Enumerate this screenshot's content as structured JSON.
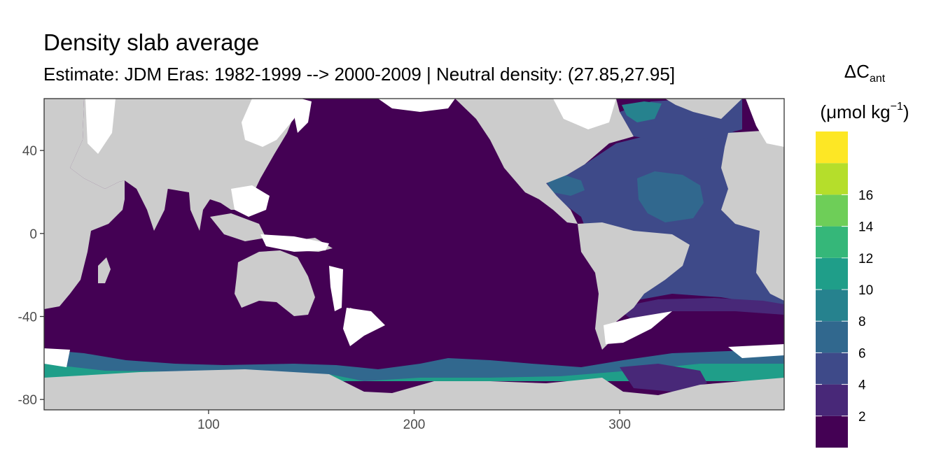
{
  "title": "Density slab average",
  "subtitle": "Estimate: JDM Eras: 1982-1999 --> 2000-2009 | Neutral density: (27.85,27.95]",
  "chart_data": {
    "type": "heatmap",
    "x_ticks": [
      "100",
      "200",
      "300"
    ],
    "x_tick_values": [
      100,
      200,
      300
    ],
    "y_ticks": [
      "40",
      "0",
      "-40",
      "-80"
    ],
    "y_tick_values": [
      40,
      0,
      -40,
      -80
    ],
    "xlim": [
      20,
      380
    ],
    "ylim": [
      -85,
      65
    ],
    "colorscale": {
      "title_symbol": "ΔC",
      "title_subscript": "ant",
      "unit_prefix": "(μmol kg",
      "unit_superscript": "−1",
      "unit_suffix": ")",
      "labels": [
        "2",
        "4",
        "6",
        "8",
        "10",
        "12",
        "14",
        "16"
      ],
      "bins": [
        {
          "from": 0,
          "to": 2,
          "color": "#440154"
        },
        {
          "from": 2,
          "to": 4,
          "color": "#482878"
        },
        {
          "from": 4,
          "to": 6,
          "color": "#3e4a89"
        },
        {
          "from": 6,
          "to": 8,
          "color": "#31688e"
        },
        {
          "from": 8,
          "to": 10,
          "color": "#26828e"
        },
        {
          "from": 10,
          "to": 12,
          "color": "#1f9e89"
        },
        {
          "from": 12,
          "to": 14,
          "color": "#35b779"
        },
        {
          "from": 14,
          "to": 16,
          "color": "#6ece58"
        },
        {
          "from": 16,
          "to": 18,
          "color": "#b5de2b"
        },
        {
          "from": 18,
          "to": 20,
          "color": "#fde725"
        }
      ]
    },
    "land_color": "#cccccc",
    "no_data_color": "#ffffff",
    "grid": false
  }
}
